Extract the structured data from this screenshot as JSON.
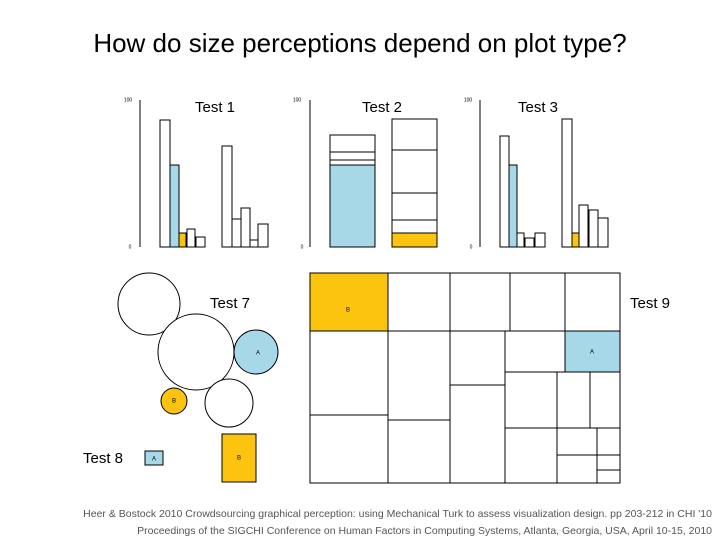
{
  "title": "How do size perceptions depend on plot type?",
  "panels": [
    {
      "label": "Test 1",
      "axis_top": "100",
      "axis_bottom": "0"
    },
    {
      "label": "Test 2",
      "axis_top": "100",
      "axis_bottom": "0"
    },
    {
      "label": "Test 3",
      "axis_top": "100",
      "axis_bottom": "0"
    }
  ],
  "bubbles": {
    "label": "Test 7",
    "marks": [
      "A",
      "B"
    ]
  },
  "squares": {
    "label": "Test 8",
    "marks": [
      "A",
      "B"
    ]
  },
  "treemap": {
    "label": "Test 9",
    "marks": [
      "B",
      "A"
    ]
  },
  "citation": [
    "Heer & Bostock 2010 Crowdsourcing graphical perception: using Mechanical Turk to assess visualization design. pp 203-212 in CHI '10",
    "Proceedings of the SIGCHI Conference on Human Factors in Computing Systems, Atlanta, Georgia, USA, April 10-15, 2010"
  ]
}
